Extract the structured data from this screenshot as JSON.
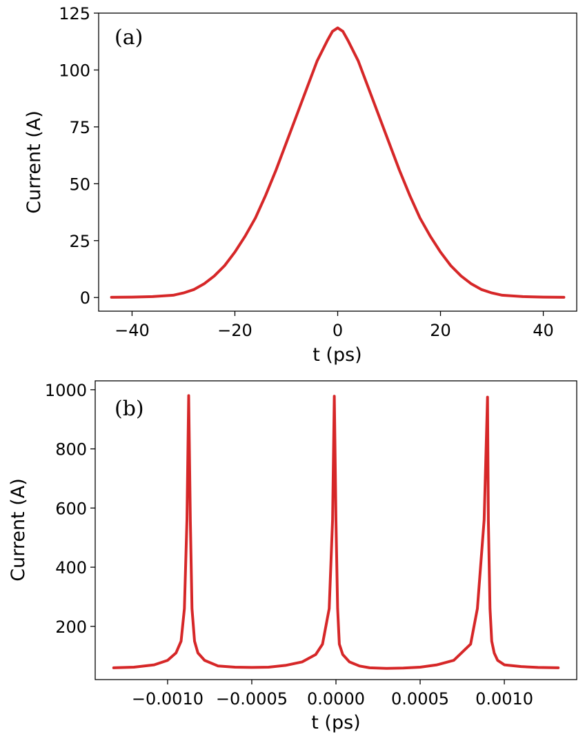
{
  "chart_data": [
    {
      "type": "line",
      "panel_label": "(a)",
      "xlabel": "t (ps)",
      "ylabel": "Current (A)",
      "xlim": [
        -46.5,
        46.5
      ],
      "ylim": [
        -6,
        125
      ],
      "xticks": [
        -40,
        -20,
        0,
        20,
        40
      ],
      "xtick_labels": [
        "−40",
        "−20",
        "0",
        "20",
        "40"
      ],
      "yticks": [
        0,
        25,
        50,
        75,
        100,
        125
      ],
      "ytick_labels": [
        "0",
        "25",
        "50",
        "75",
        "100",
        "125"
      ],
      "grid": false,
      "color": "#d62728",
      "series": [
        {
          "x": [
            -44,
            -40,
            -36,
            -32,
            -30,
            -28,
            -26,
            -24,
            -22,
            -20,
            -18,
            -16,
            -14,
            -12,
            -10,
            -8,
            -6,
            -4,
            -2,
            -1,
            0,
            1,
            2,
            4,
            6,
            8,
            10,
            12,
            14,
            16,
            18,
            20,
            22,
            24,
            26,
            28,
            30,
            32,
            36,
            40,
            44
          ],
          "y": [
            0.1,
            0.2,
            0.4,
            1.0,
            2.0,
            3.5,
            6.0,
            9.5,
            14.0,
            20.0,
            27.0,
            35.0,
            45.0,
            56.0,
            68.0,
            80.0,
            92.0,
            104.0,
            113.0,
            117.0,
            118.5,
            117.0,
            113.0,
            104.0,
            92.0,
            80.0,
            68.0,
            56.0,
            45.0,
            35.0,
            27.0,
            20.0,
            14.0,
            9.5,
            6.0,
            3.5,
            2.0,
            1.0,
            0.4,
            0.2,
            0.1
          ]
        }
      ]
    },
    {
      "type": "line",
      "panel_label": "(b)",
      "xlabel": "t (ps)",
      "ylabel": "Current (A)",
      "xlim": [
        -0.00143,
        0.00143
      ],
      "ylim": [
        20,
        1030
      ],
      "xticks": [
        -0.001,
        -0.0005,
        0.0,
        0.0005,
        0.001
      ],
      "xtick_labels": [
        "−0.0010",
        "−0.0005",
        "0.0000",
        "0.0005",
        "0.0010"
      ],
      "yticks": [
        200,
        400,
        600,
        800,
        1000
      ],
      "ytick_labels": [
        "200",
        "400",
        "600",
        "800",
        "1000"
      ],
      "grid": false,
      "color": "#d62728",
      "series": [
        {
          "x": [
            -0.00132,
            -0.0012,
            -0.00108,
            -0.001,
            -0.00095,
            -0.00092,
            -0.0009,
            -0.000885,
            -0.000875,
            -0.000865,
            -0.000855,
            -0.00084,
            -0.00082,
            -0.00078,
            -0.0007,
            -0.0006,
            -0.0005,
            -0.0004,
            -0.0003,
            -0.0002,
            -0.00012,
            -8e-05,
            -4e-05,
            -2e-05,
            -1e-05,
            0.0,
            1e-05,
            2e-05,
            4e-05,
            8e-05,
            0.00014,
            0.0002,
            0.0003,
            0.0004,
            0.0005,
            0.0006,
            0.0007,
            0.0008,
            0.00084,
            0.00088,
            0.0009,
            0.000905,
            0.000915,
            0.000925,
            0.00094,
            0.00096,
            0.001,
            0.0011,
            0.0012,
            0.00132
          ],
          "y": [
            60,
            62,
            70,
            85,
            110,
            150,
            260,
            560,
            980,
            560,
            260,
            150,
            110,
            85,
            66,
            62,
            61,
            62,
            68,
            80,
            105,
            140,
            260,
            560,
            978,
            560,
            260,
            140,
            105,
            80,
            66,
            60,
            58,
            59,
            62,
            70,
            85,
            140,
            260,
            560,
            975,
            560,
            260,
            150,
            110,
            85,
            70,
            64,
            61,
            60
          ]
        }
      ]
    }
  ]
}
